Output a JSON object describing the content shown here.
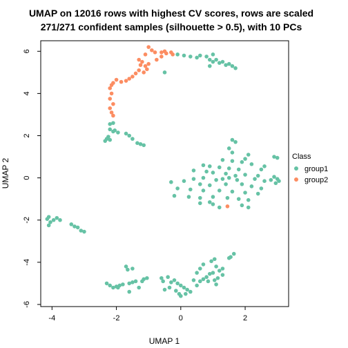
{
  "chart_data": {
    "type": "scatter",
    "title_line1": "UMAP on 12016 rows with highest CV scores, rows are scaled",
    "title_line2": "271/271 confident samples (silhouette > 0.5), with 10 PCs",
    "xlabel": "UMAP 1",
    "ylabel": "UMAP 2",
    "xlim": [
      -4.35,
      3.35
    ],
    "ylim": [
      -6.1,
      6.5
    ],
    "xticks": [
      -4,
      -2,
      0,
      2
    ],
    "yticks": [
      -6,
      -4,
      -2,
      0,
      2,
      4,
      6
    ],
    "grid": false,
    "legend": {
      "title": "Class",
      "position": "right"
    },
    "series": [
      {
        "name": "group1",
        "color": "#66C2A5",
        "points": [
          [
            -0.1,
            5.85
          ],
          [
            0.1,
            5.8
          ],
          [
            0.3,
            5.75
          ],
          [
            0.5,
            5.7
          ],
          [
            0.6,
            5.8
          ],
          [
            0.8,
            5.75
          ],
          [
            0.9,
            5.6
          ],
          [
            1.0,
            5.5
          ],
          [
            1.1,
            5.6
          ],
          [
            1.2,
            5.45
          ],
          [
            1.3,
            5.5
          ],
          [
            1.4,
            5.35
          ],
          [
            1.5,
            5.4
          ],
          [
            1.6,
            5.3
          ],
          [
            1.7,
            5.2
          ],
          [
            1.0,
            5.85
          ],
          [
            0.9,
            5.3
          ],
          [
            -0.5,
            5.0
          ],
          [
            -2.2,
            2.3
          ],
          [
            -2.1,
            2.2
          ],
          [
            -2.05,
            2.25
          ],
          [
            -1.95,
            2.15
          ],
          [
            -2.2,
            2.55
          ],
          [
            -2.1,
            2.6
          ],
          [
            -2.25,
            1.95
          ],
          [
            -2.35,
            1.75
          ],
          [
            -2.3,
            1.85
          ],
          [
            -2.2,
            1.8
          ],
          [
            -1.7,
            2.1
          ],
          [
            -1.6,
            2.0
          ],
          [
            -1.5,
            1.85
          ],
          [
            -1.35,
            1.65
          ],
          [
            -1.25,
            1.6
          ],
          [
            -1.15,
            1.55
          ],
          [
            -4.1,
            -1.85
          ],
          [
            -4.15,
            -1.95
          ],
          [
            -4.05,
            -2.1
          ],
          [
            -4.1,
            -2.25
          ],
          [
            -3.95,
            -2.0
          ],
          [
            -3.85,
            -1.9
          ],
          [
            -3.75,
            -2.0
          ],
          [
            -3.4,
            -2.2
          ],
          [
            -3.3,
            -2.3
          ],
          [
            -3.2,
            -2.35
          ],
          [
            -3.1,
            -2.5
          ],
          [
            -3.0,
            -2.55
          ],
          [
            1.6,
            1.8
          ],
          [
            1.7,
            1.7
          ],
          [
            1.5,
            1.4
          ],
          [
            1.6,
            1.2
          ],
          [
            2.1,
            1.1
          ],
          [
            2.0,
            0.9
          ],
          [
            2.9,
            1.0
          ],
          [
            3.0,
            0.95
          ],
          [
            1.3,
            0.85
          ],
          [
            1.6,
            0.8
          ],
          [
            1.9,
            0.75
          ],
          [
            2.2,
            0.65
          ],
          [
            2.6,
            0.55
          ],
          [
            0.7,
            0.6
          ],
          [
            0.9,
            0.55
          ],
          [
            1.2,
            0.5
          ],
          [
            1.5,
            0.45
          ],
          [
            1.8,
            0.4
          ],
          [
            2.5,
            0.4
          ],
          [
            0.4,
            0.35
          ],
          [
            0.8,
            0.3
          ],
          [
            1.0,
            0.25
          ],
          [
            1.4,
            0.2
          ],
          [
            1.7,
            0.1
          ],
          [
            2.0,
            0.15
          ],
          [
            2.4,
            0.1
          ],
          [
            2.9,
            0.05
          ],
          [
            3.0,
            -0.05
          ],
          [
            3.05,
            -0.15
          ],
          [
            2.95,
            -0.25
          ],
          [
            2.8,
            -0.1
          ],
          [
            0.4,
            -0.05
          ],
          [
            0.7,
            0.0
          ],
          [
            1.1,
            -0.1
          ],
          [
            1.3,
            -0.05
          ],
          [
            1.5,
            0.0
          ],
          [
            1.75,
            -0.1
          ],
          [
            2.3,
            -0.05
          ],
          [
            2.6,
            -0.15
          ],
          [
            -0.3,
            -0.2
          ],
          [
            0.1,
            -0.15
          ],
          [
            0.6,
            -0.3
          ],
          [
            0.9,
            -0.35
          ],
          [
            1.4,
            -0.3
          ],
          [
            1.9,
            -0.3
          ],
          [
            2.2,
            -0.4
          ],
          [
            2.5,
            -0.5
          ],
          [
            -0.1,
            -0.5
          ],
          [
            0.3,
            -0.55
          ],
          [
            0.7,
            -0.6
          ],
          [
            1.2,
            -0.6
          ],
          [
            1.6,
            -0.65
          ],
          [
            2.0,
            -0.7
          ],
          [
            2.4,
            -0.75
          ],
          [
            -0.2,
            -0.85
          ],
          [
            0.25,
            -0.9
          ],
          [
            0.6,
            -0.95
          ],
          [
            1.0,
            -0.9
          ],
          [
            1.45,
            -0.95
          ],
          [
            1.8,
            -1.0
          ],
          [
            2.1,
            -1.05
          ],
          [
            0.6,
            -1.2
          ],
          [
            1.0,
            -1.25
          ],
          [
            1.9,
            -1.3
          ],
          [
            2.1,
            -1.4
          ],
          [
            1.2,
            -1.4
          ],
          [
            0.9,
            -1.15
          ],
          [
            -2.3,
            -5.0
          ],
          [
            -2.2,
            -5.1
          ],
          [
            -2.1,
            -5.2
          ],
          [
            -2.0,
            -5.15
          ],
          [
            -1.9,
            -5.1
          ],
          [
            -1.8,
            -5.05
          ],
          [
            -1.95,
            -5.2
          ],
          [
            -1.6,
            -5.0
          ],
          [
            -1.5,
            -4.95
          ],
          [
            -1.4,
            -4.9
          ],
          [
            -1.3,
            -5.2
          ],
          [
            -1.2,
            -4.9
          ],
          [
            -1.15,
            -4.8
          ],
          [
            -1.05,
            -4.75
          ],
          [
            -1.7,
            -4.2
          ],
          [
            -1.65,
            -4.35
          ],
          [
            -1.5,
            -4.3
          ],
          [
            -1.6,
            -5.4
          ],
          [
            -0.6,
            -4.75
          ],
          [
            -0.55,
            -4.9
          ],
          [
            -0.4,
            -4.7
          ],
          [
            -0.3,
            -4.95
          ],
          [
            -0.2,
            -4.85
          ],
          [
            -0.1,
            -5.0
          ],
          [
            0.0,
            -5.1
          ],
          [
            0.1,
            -5.2
          ],
          [
            0.2,
            -5.3
          ],
          [
            0.3,
            -5.4
          ],
          [
            -0.35,
            -5.2
          ],
          [
            -0.15,
            -5.35
          ],
          [
            -0.05,
            -5.5
          ],
          [
            0.0,
            -5.6
          ],
          [
            0.15,
            -5.5
          ],
          [
            -0.5,
            -5.3
          ],
          [
            0.5,
            -5.1
          ],
          [
            0.6,
            -4.9
          ],
          [
            0.7,
            -4.8
          ],
          [
            0.8,
            -4.7
          ],
          [
            0.9,
            -4.55
          ],
          [
            1.0,
            -4.5
          ],
          [
            0.85,
            -4.9
          ],
          [
            1.05,
            -4.85
          ],
          [
            1.15,
            -4.75
          ],
          [
            1.2,
            -4.4
          ],
          [
            1.3,
            -4.3
          ],
          [
            1.1,
            -4.2
          ],
          [
            0.7,
            -4.1
          ],
          [
            0.6,
            -4.3
          ],
          [
            0.5,
            -4.5
          ],
          [
            0.95,
            -3.95
          ],
          [
            1.05,
            -3.85
          ],
          [
            1.3,
            -4.6
          ],
          [
            1.5,
            -3.8
          ],
          [
            1.55,
            -3.75
          ],
          [
            1.65,
            -3.6
          ],
          [
            0.4,
            -4.85
          ],
          [
            1.1,
            -5.05
          ]
        ]
      },
      {
        "name": "group2",
        "color": "#FC8D62",
        "points": [
          [
            -1.0,
            6.2
          ],
          [
            -0.9,
            6.05
          ],
          [
            -0.8,
            5.95
          ],
          [
            -1.1,
            5.85
          ],
          [
            -0.6,
            5.95
          ],
          [
            -0.5,
            6.0
          ],
          [
            -0.45,
            5.9
          ],
          [
            -0.3,
            5.95
          ],
          [
            -0.25,
            5.85
          ],
          [
            -0.6,
            5.75
          ],
          [
            -0.75,
            5.6
          ],
          [
            -1.3,
            5.6
          ],
          [
            -1.2,
            5.5
          ],
          [
            -1.25,
            5.35
          ],
          [
            -1.1,
            5.3
          ],
          [
            -1.0,
            5.4
          ],
          [
            -1.05,
            5.15
          ],
          [
            -1.15,
            5.0
          ],
          [
            -1.3,
            5.1
          ],
          [
            -1.4,
            4.95
          ],
          [
            -1.5,
            4.8
          ],
          [
            -1.6,
            4.7
          ],
          [
            -1.7,
            4.6
          ],
          [
            -1.85,
            4.55
          ],
          [
            -2.0,
            4.65
          ],
          [
            -2.1,
            4.5
          ],
          [
            -2.15,
            4.4
          ],
          [
            -2.2,
            4.25
          ],
          [
            -2.15,
            4.0
          ],
          [
            -2.2,
            3.75
          ],
          [
            -2.1,
            3.5
          ],
          [
            -2.2,
            3.3
          ],
          [
            -2.15,
            3.1
          ],
          [
            -2.1,
            2.95
          ],
          [
            1.45,
            -1.35
          ]
        ]
      }
    ]
  }
}
